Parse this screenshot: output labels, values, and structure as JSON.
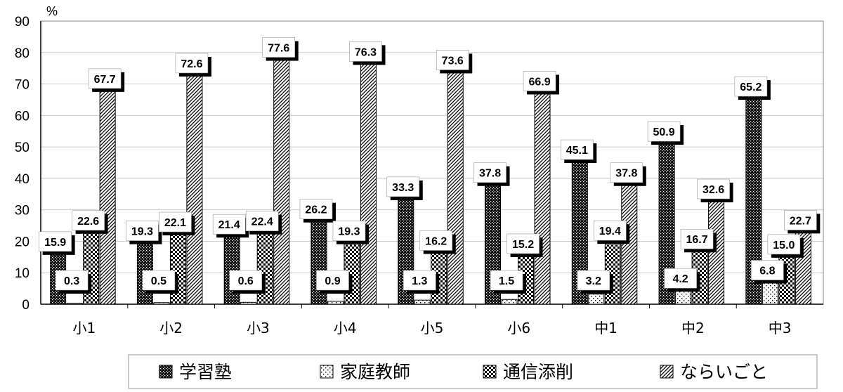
{
  "chart_data": {
    "type": "bar",
    "unit_label": "%",
    "categories": [
      "小1",
      "小2",
      "小3",
      "小4",
      "小5",
      "小6",
      "中1",
      "中2",
      "中3"
    ],
    "ylim": [
      0,
      90
    ],
    "yticks": [
      0,
      10,
      20,
      30,
      40,
      50,
      60,
      70,
      80,
      90
    ],
    "grid": true,
    "legend_position": "bottom",
    "series": [
      {
        "name": "学習塾",
        "pattern": "dots-dense",
        "values": [
          15.9,
          19.3,
          21.4,
          26.2,
          33.3,
          37.8,
          45.1,
          50.9,
          65.2
        ]
      },
      {
        "name": "家庭教師",
        "pattern": "dots-sparse",
        "values": [
          0.3,
          0.5,
          0.6,
          0.9,
          1.3,
          1.5,
          3.2,
          4.2,
          6.8
        ]
      },
      {
        "name": "通信添削",
        "pattern": "checker",
        "values": [
          22.6,
          22.1,
          22.4,
          19.3,
          16.2,
          15.2,
          19.4,
          16.7,
          15.0
        ]
      },
      {
        "name": "ならいごと",
        "pattern": "diagonal",
        "values": [
          67.7,
          72.6,
          77.6,
          76.3,
          73.6,
          66.9,
          37.8,
          32.6,
          22.7
        ]
      }
    ],
    "colors": {
      "axis": "#000000",
      "grid": "#cccccc",
      "bar_border": "#000000"
    }
  }
}
